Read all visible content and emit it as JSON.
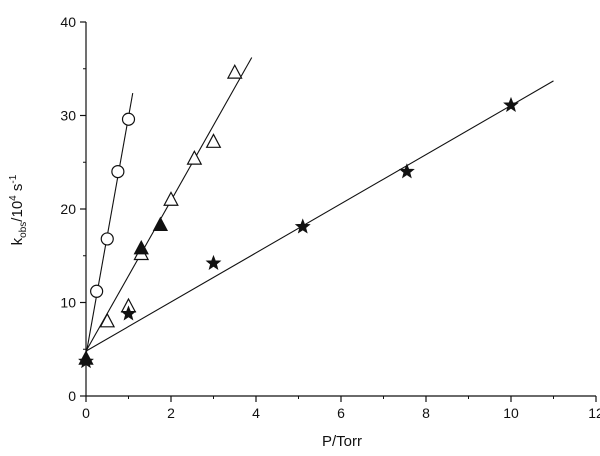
{
  "chart_data": {
    "type": "scatter",
    "title": "",
    "xlabel": "P/Torr",
    "ylabel": {
      "base": "k",
      "sub": "obs",
      "mid": "/10",
      "sup": "4",
      "unit": " s",
      "unit_sup": "-1"
    },
    "xlim": [
      0,
      12
    ],
    "ylim": [
      0,
      40
    ],
    "x_ticks": [
      0,
      2,
      4,
      6,
      8,
      10,
      12
    ],
    "y_ticks": [
      0,
      10,
      20,
      30,
      40
    ],
    "x_tick_labels": [
      "0",
      "2",
      "4",
      "6",
      "8",
      "10",
      "12"
    ],
    "y_tick_labels": [
      "0",
      "10",
      "20",
      "30",
      "40"
    ],
    "grid": false,
    "legend": "none",
    "colors": {
      "ink": "#111111"
    },
    "series": [
      {
        "marker": "circle-open",
        "points": [
          [
            0.25,
            11.2
          ],
          [
            0.5,
            16.8
          ],
          [
            0.75,
            24.0
          ],
          [
            1.0,
            29.6
          ]
        ],
        "fit": {
          "from": [
            0.0,
            4.4
          ],
          "to": [
            1.1,
            32.4
          ]
        }
      },
      {
        "marker": "triangle-open",
        "points": [
          [
            0.5,
            8.0
          ],
          [
            1.0,
            9.6
          ],
          [
            1.3,
            15.2
          ],
          [
            2.0,
            21.0
          ],
          [
            2.55,
            25.4
          ],
          [
            3.0,
            27.2
          ],
          [
            3.5,
            34.6
          ]
        ],
        "fit": {
          "from": [
            0.0,
            4.8
          ],
          "to": [
            3.9,
            36.2
          ]
        }
      },
      {
        "marker": "triangle-filled",
        "points": [
          [
            0.0,
            4.0
          ],
          [
            1.3,
            15.8
          ],
          [
            1.75,
            18.3
          ]
        ]
      },
      {
        "marker": "star-filled",
        "points": [
          [
            0.0,
            3.7
          ],
          [
            1.0,
            8.8
          ],
          [
            3.0,
            14.2
          ],
          [
            5.1,
            18.1
          ],
          [
            7.55,
            24.0
          ],
          [
            10.0,
            31.1
          ]
        ],
        "fit": {
          "from": [
            0.0,
            4.8
          ],
          "to": [
            11.0,
            33.7
          ]
        }
      }
    ]
  }
}
